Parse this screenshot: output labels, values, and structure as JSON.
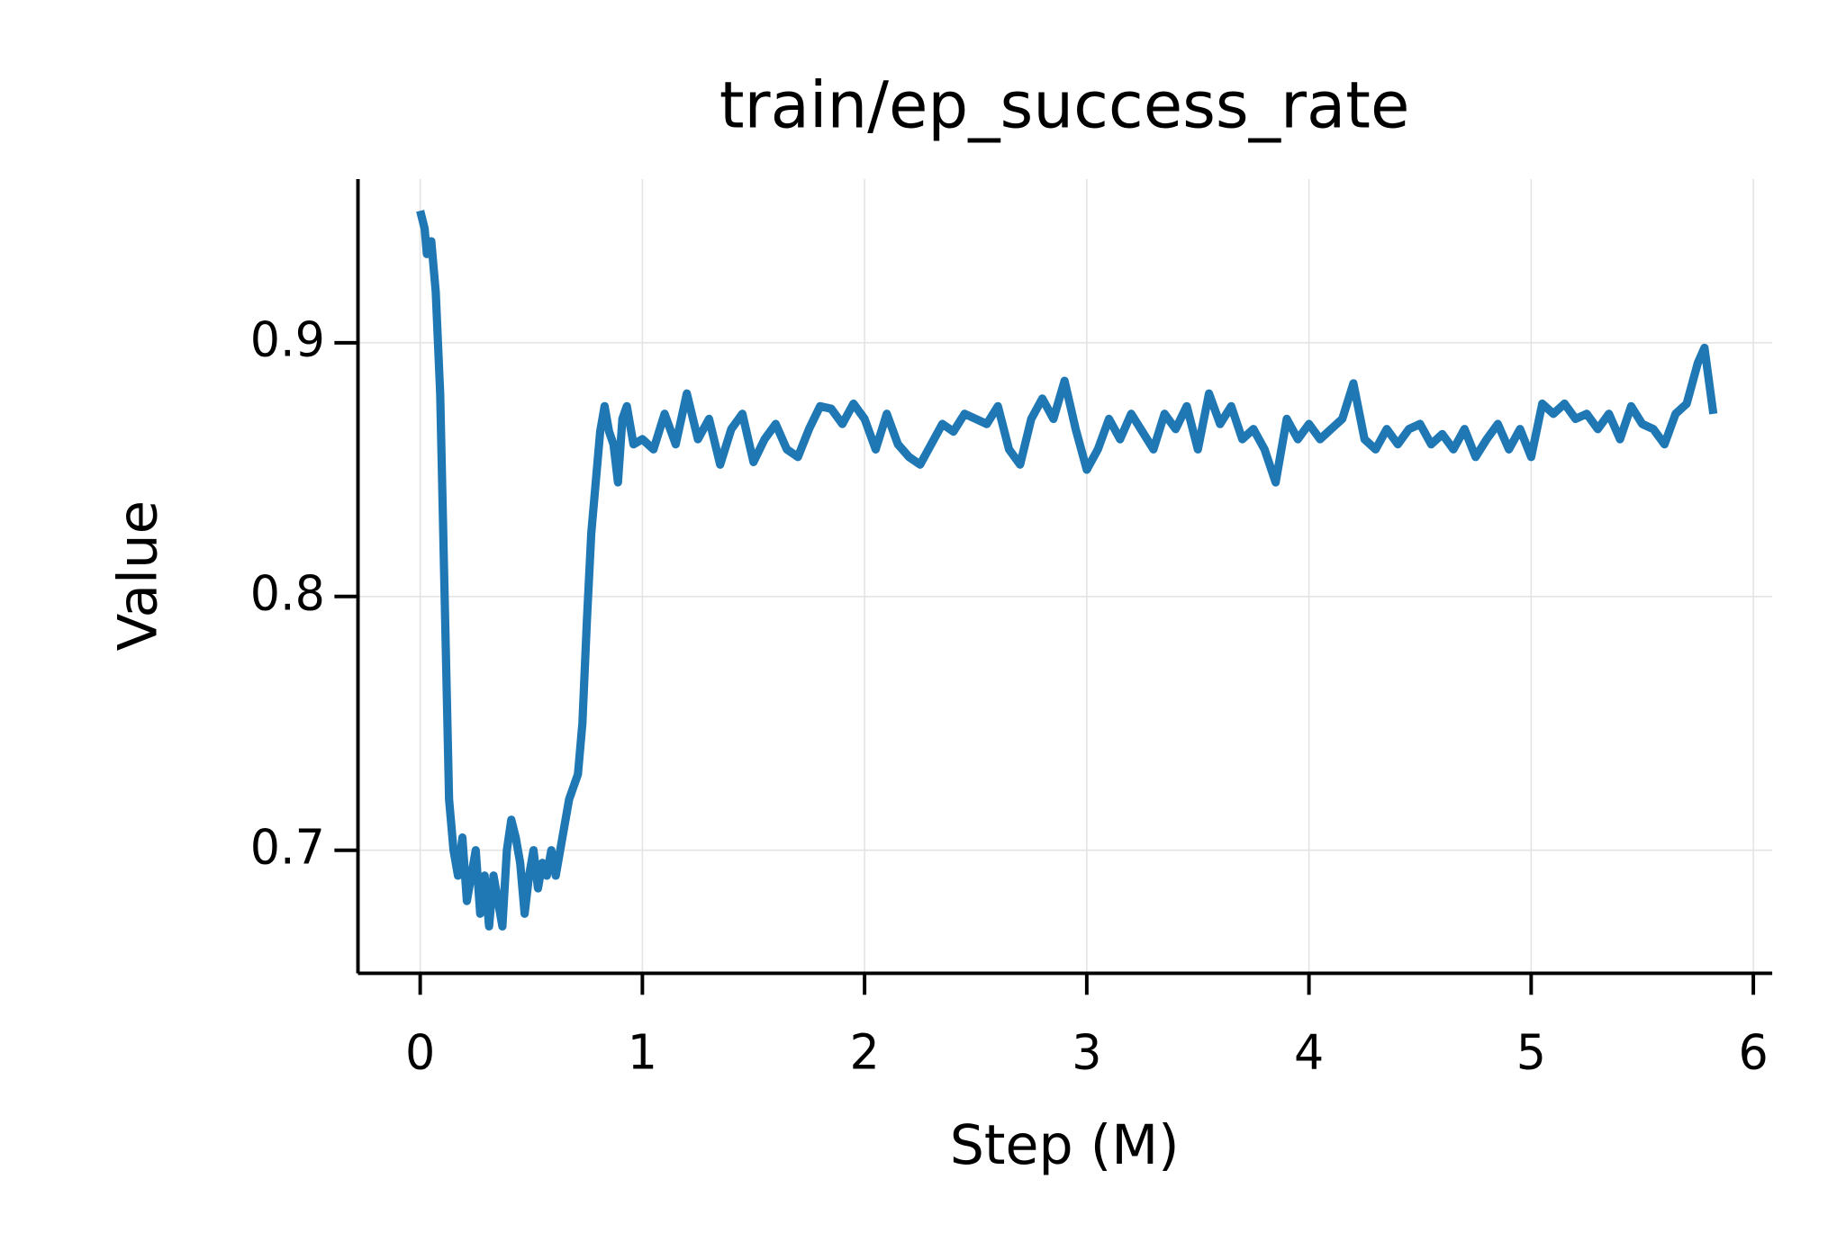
{
  "chart_data": {
    "type": "line",
    "title": "train/ep_success_rate",
    "x_label": "Step (M)",
    "y_label": "Value",
    "x": [
      0,
      0.02,
      0.03,
      0.05,
      0.07,
      0.09,
      0.1,
      0.12,
      0.13,
      0.15,
      0.17,
      0.19,
      0.21,
      0.23,
      0.25,
      0.27,
      0.29,
      0.31,
      0.33,
      0.35,
      0.37,
      0.39,
      0.41,
      0.43,
      0.45,
      0.47,
      0.49,
      0.51,
      0.53,
      0.55,
      0.57,
      0.59,
      0.61,
      0.63,
      0.65,
      0.67,
      0.69,
      0.71,
      0.73,
      0.75,
      0.77,
      0.79,
      0.81,
      0.83,
      0.85,
      0.87,
      0.89,
      0.91,
      0.93,
      0.96,
      1.0,
      1.05,
      1.1,
      1.15,
      1.2,
      1.25,
      1.3,
      1.35,
      1.4,
      1.45,
      1.5,
      1.55,
      1.6,
      1.65,
      1.7,
      1.75,
      1.8,
      1.85,
      1.9,
      1.95,
      2.0,
      2.05,
      2.1,
      2.15,
      2.2,
      2.25,
      2.3,
      2.35,
      2.4,
      2.45,
      2.5,
      2.55,
      2.6,
      2.65,
      2.7,
      2.75,
      2.8,
      2.85,
      2.9,
      2.95,
      3.0,
      3.05,
      3.1,
      3.15,
      3.2,
      3.25,
      3.3,
      3.35,
      3.4,
      3.45,
      3.5,
      3.55,
      3.6,
      3.65,
      3.7,
      3.75,
      3.8,
      3.85,
      3.9,
      3.95,
      4.0,
      4.05,
      4.1,
      4.15,
      4.2,
      4.25,
      4.3,
      4.35,
      4.4,
      4.45,
      4.5,
      4.55,
      4.6,
      4.65,
      4.7,
      4.75,
      4.8,
      4.85,
      4.9,
      4.95,
      5.0,
      5.05,
      5.1,
      5.15,
      5.2,
      5.25,
      5.3,
      5.35,
      5.4,
      5.45,
      5.5,
      5.55,
      5.6,
      5.65,
      5.7,
      5.75,
      5.78,
      5.82
    ],
    "series": [
      {
        "name": "train/ep_success_rate",
        "color": "#1f77b4",
        "values": [
          0.952,
          0.945,
          0.935,
          0.94,
          0.92,
          0.88,
          0.84,
          0.76,
          0.72,
          0.7,
          0.69,
          0.705,
          0.68,
          0.69,
          0.7,
          0.675,
          0.69,
          0.67,
          0.69,
          0.68,
          0.67,
          0.7,
          0.712,
          0.705,
          0.695,
          0.675,
          0.69,
          0.7,
          0.685,
          0.695,
          0.69,
          0.7,
          0.69,
          0.7,
          0.71,
          0.72,
          0.725,
          0.73,
          0.75,
          0.79,
          0.825,
          0.845,
          0.865,
          0.875,
          0.865,
          0.86,
          0.845,
          0.87,
          0.875,
          0.86,
          0.862,
          0.858,
          0.872,
          0.86,
          0.88,
          0.862,
          0.87,
          0.852,
          0.866,
          0.872,
          0.853,
          0.862,
          0.868,
          0.858,
          0.855,
          0.866,
          0.875,
          0.874,
          0.868,
          0.876,
          0.87,
          0.858,
          0.872,
          0.86,
          0.855,
          0.852,
          0.86,
          0.868,
          0.865,
          0.872,
          0.87,
          0.868,
          0.875,
          0.858,
          0.852,
          0.87,
          0.878,
          0.87,
          0.885,
          0.866,
          0.85,
          0.858,
          0.87,
          0.862,
          0.872,
          0.865,
          0.858,
          0.872,
          0.866,
          0.875,
          0.858,
          0.88,
          0.868,
          0.875,
          0.862,
          0.866,
          0.858,
          0.845,
          0.87,
          0.862,
          0.868,
          0.862,
          0.866,
          0.87,
          0.884,
          0.862,
          0.858,
          0.866,
          0.86,
          0.866,
          0.868,
          0.86,
          0.864,
          0.858,
          0.866,
          0.855,
          0.862,
          0.868,
          0.858,
          0.866,
          0.855,
          0.876,
          0.872,
          0.876,
          0.87,
          0.872,
          0.866,
          0.872,
          0.862,
          0.875,
          0.868,
          0.866,
          0.86,
          0.872,
          0.876,
          0.892,
          0.898,
          0.872
        ]
      }
    ],
    "xlim": [
      -0.28,
      6.085
    ],
    "ylim": [
      0.6515,
      0.9645
    ],
    "xticks": [
      0,
      1,
      2,
      3,
      4,
      5,
      6
    ],
    "yticks": [
      0.7,
      0.8,
      0.9
    ],
    "grid": true
  }
}
